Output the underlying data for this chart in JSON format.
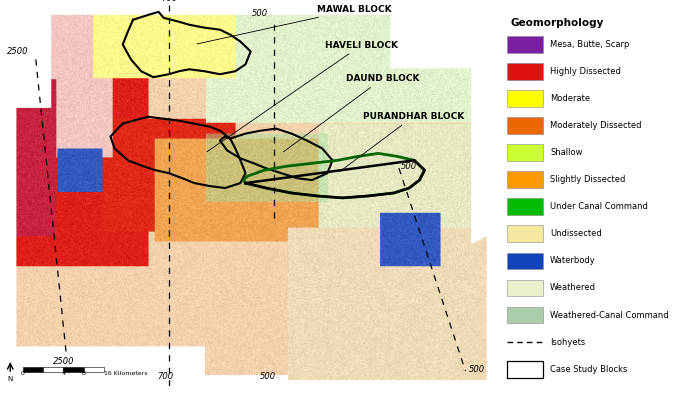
{
  "legend_title": "Geomorphology",
  "legend_items": [
    {
      "label": "Mesa, Butte, Scarp",
      "color": "#7B1FA2"
    },
    {
      "label": "Highly Dissected",
      "color": "#DD1111"
    },
    {
      "label": "Moderate",
      "color": "#FFFF00"
    },
    {
      "label": "Moderately Dissected",
      "color": "#EE6600"
    },
    {
      "label": "Shallow",
      "color": "#CCFF33"
    },
    {
      "label": "Slightly Dissected",
      "color": "#FF9900"
    },
    {
      "label": "Under Canal Command",
      "color": "#00BB00"
    },
    {
      "label": "Undissected",
      "color": "#F5E8A0"
    },
    {
      "label": "Waterbody",
      "color": "#1144BB"
    },
    {
      "label": "Weathered",
      "color": "#E8F0CC"
    },
    {
      "label": "Weathered-Canal Command",
      "color": "#AACCAA"
    }
  ],
  "dashed_legend_label": "Isohyets",
  "box_legend_label": "Case Study Blocks",
  "bg_color": "#FFFFFF"
}
